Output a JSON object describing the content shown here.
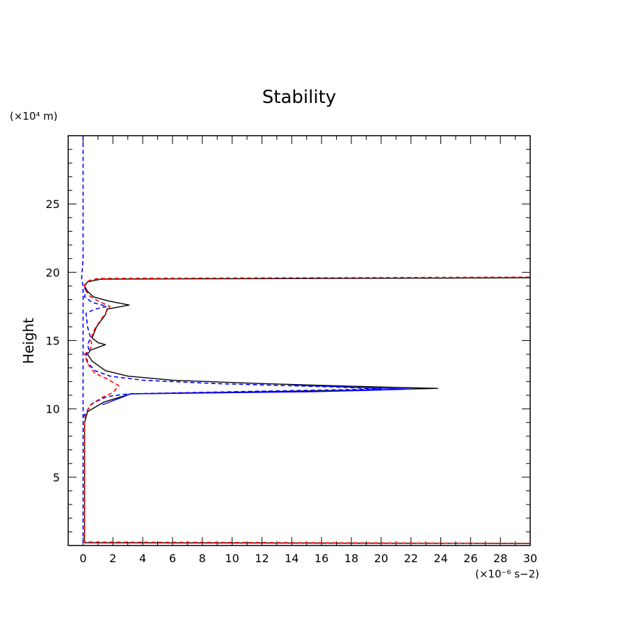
{
  "chart_data": {
    "type": "line",
    "title": "Stability",
    "xlabel": "",
    "x_unit_label": "(×10⁻⁶ s−2)",
    "ylabel": "Height",
    "y_unit_label": "(×10⁴ m)",
    "xlim": [
      -1,
      30
    ],
    "ylim": [
      0,
      30
    ],
    "x_ticks": [
      0,
      2,
      4,
      6,
      8,
      10,
      12,
      14,
      16,
      18,
      20,
      22,
      24,
      26,
      28,
      30
    ],
    "y_ticks": [
      5,
      10,
      15,
      20,
      25
    ],
    "grid": false,
    "series": [
      {
        "color": "#000000",
        "dash": "solid",
        "points": [
          [
            31,
            0.15
          ],
          [
            0.1,
            0.2
          ],
          [
            0.1,
            9.0
          ],
          [
            0.3,
            9.8
          ],
          [
            1.4,
            10.5
          ],
          [
            3.2,
            11.1
          ],
          [
            20,
            11.4
          ],
          [
            23.8,
            11.5
          ],
          [
            20,
            11.6
          ],
          [
            12,
            11.85
          ],
          [
            6,
            12.1
          ],
          [
            3,
            12.4
          ],
          [
            1.5,
            12.8
          ],
          [
            0.6,
            13.5
          ],
          [
            0.3,
            14.0
          ],
          [
            0.5,
            14.3
          ],
          [
            1.0,
            14.5
          ],
          [
            1.5,
            14.7
          ],
          [
            1.0,
            14.85
          ],
          [
            0.6,
            15.2
          ],
          [
            0.9,
            16.0
          ],
          [
            1.5,
            16.9
          ],
          [
            1.6,
            17.3
          ],
          [
            3.1,
            17.6
          ],
          [
            1.7,
            17.9
          ],
          [
            0.7,
            18.2
          ],
          [
            0.3,
            18.6
          ],
          [
            0.1,
            19.0
          ],
          [
            0.3,
            19.3
          ],
          [
            1.2,
            19.5
          ],
          [
            31,
            19.6
          ]
        ]
      },
      {
        "color": "#0000ff",
        "dash": "solid",
        "points": [
          [
            1.3,
            10.3
          ],
          [
            3.2,
            11.1
          ],
          [
            15,
            11.25
          ],
          [
            19,
            11.35
          ],
          [
            22,
            11.45
          ],
          [
            19,
            11.55
          ],
          [
            14,
            11.75
          ]
        ]
      },
      {
        "color": "#0000ff",
        "dash": "dashed",
        "points": [
          [
            0,
            0.15
          ],
          [
            0,
            19.0
          ],
          [
            -0.1,
            19.5
          ],
          [
            0,
            21
          ],
          [
            0,
            30
          ]
        ]
      },
      {
        "color": "#0000ff",
        "dash": "dashed",
        "points": [
          [
            0,
            9.4
          ],
          [
            0.6,
            10.4
          ],
          [
            1.6,
            10.9
          ],
          [
            3,
            11.1
          ],
          [
            12,
            11.3
          ],
          [
            20,
            11.45
          ],
          [
            17,
            11.6
          ],
          [
            9,
            11.85
          ],
          [
            4,
            12.1
          ],
          [
            1.8,
            12.4
          ],
          [
            0.8,
            12.8
          ],
          [
            0.3,
            13.4
          ],
          [
            0.2,
            14.0
          ],
          [
            0.4,
            14.3
          ],
          [
            0.3,
            14.7
          ],
          [
            0.5,
            15.2
          ],
          [
            0.3,
            16.0
          ],
          [
            0.2,
            17.0
          ],
          [
            0.8,
            17.3
          ],
          [
            1.6,
            17.5
          ],
          [
            0.6,
            17.8
          ],
          [
            0.1,
            18.2
          ],
          [
            0.2,
            18.7
          ],
          [
            0,
            19.0
          ]
        ]
      },
      {
        "color": "#ff0000",
        "dash": "dashed",
        "points": [
          [
            31,
            0.15
          ],
          [
            0.1,
            0.25
          ],
          [
            0.1,
            9.3
          ],
          [
            0.4,
            10.2
          ],
          [
            1.2,
            10.8
          ],
          [
            2.0,
            11.2
          ],
          [
            2.4,
            11.7
          ],
          [
            1.6,
            12.2
          ],
          [
            0.8,
            12.6
          ],
          [
            0.3,
            13.3
          ],
          [
            0.1,
            14.0
          ],
          [
            0.4,
            14.3
          ],
          [
            0.6,
            14.6
          ],
          [
            0.5,
            15.1
          ],
          [
            0.8,
            15.9
          ],
          [
            1.5,
            17.0
          ],
          [
            1.8,
            17.5
          ],
          [
            1.0,
            17.9
          ],
          [
            0.4,
            18.3
          ],
          [
            0.1,
            18.8
          ],
          [
            0.1,
            19.1
          ],
          [
            0.4,
            19.4
          ],
          [
            1.0,
            19.55
          ],
          [
            31,
            19.65
          ]
        ]
      }
    ]
  }
}
